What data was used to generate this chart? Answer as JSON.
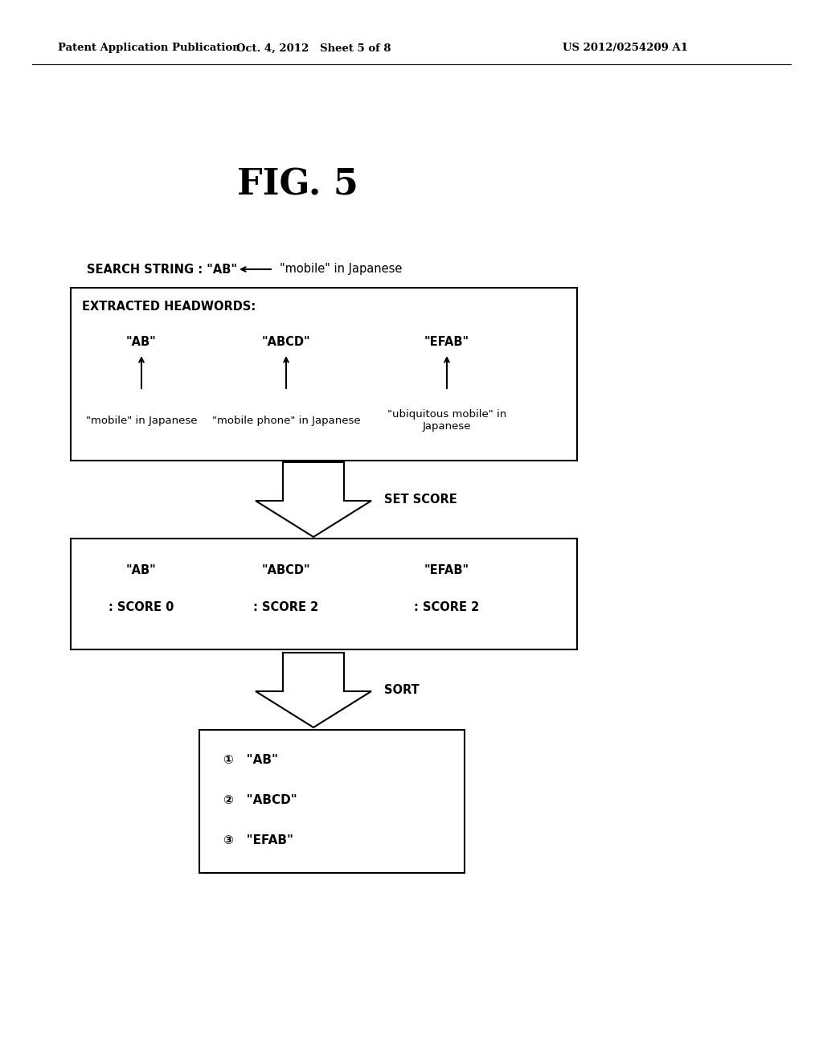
{
  "bg_color": "#ffffff",
  "header_left": "Patent Application Publication",
  "header_mid": "Oct. 4, 2012   Sheet 5 of 8",
  "header_right": "US 2012/0254209 A1",
  "fig_title": "FIG. 5",
  "search_string_label": "SEARCH STRING : \"AB\"",
  "search_string_source": "\"mobile\" in Japanese",
  "box1_label": "EXTRACTED HEADWORDS:",
  "box1_items": [
    "\"AB\"",
    "\"ABCD\"",
    "\"EFAB\""
  ],
  "box1_sources": [
    "\"mobile\" in Japanese",
    "\"mobile phone\" in Japanese",
    "\"ubiquitous mobile\" in\nJapanese"
  ],
  "arrow1_label": "SET SCORE",
  "box2_items": [
    "\"AB\"",
    "\"ABCD\"",
    "\"EFAB\""
  ],
  "box2_scores": [
    ": SCORE 0",
    ": SCORE 2",
    ": SCORE 2"
  ],
  "arrow2_label": "SORT",
  "box3_item1": "①   \"AB\"",
  "box3_item2": "②   \"ABCD\"",
  "box3_item3": "③   \"EFAB\""
}
